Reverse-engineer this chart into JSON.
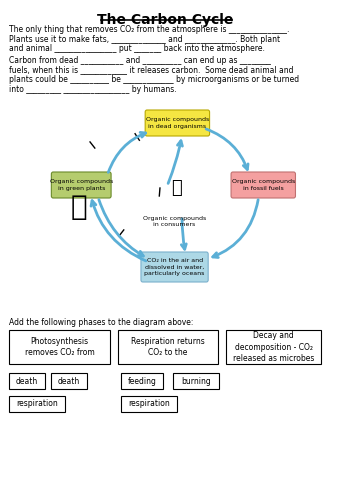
{
  "title": "The Carbon Cycle",
  "bg_color": "#ffffff",
  "para1_lines": [
    "The only thing that removes CO₂ from the atmosphere is _______________.",
    "Plants use it to make fats, ______________ and _____________. Both plant",
    "and animal ________________ put _______ back into the atmosphere."
  ],
  "para2_lines": [
    "Carbon from dead ___________ and __________ can end up as ________",
    "fuels, when this is ____________ it releases carbon.  Some dead animal and",
    "plants could be __________ be _____________ by microorganisms or be turned",
    "into _________ _________________ by humans."
  ],
  "diagram_labels": {
    "top": "Organic compounds\nin dead organisms",
    "left": "Organic compounds\nin green plants",
    "center": "Organic compounds\nin consumers",
    "right": "Organic compounds\nin fossil fuels",
    "bottom": "CO₂ in the air and\ndissolved in water,\nparticularly oceans"
  },
  "diagram_colors": {
    "top": "#f5e642",
    "top_edge": "#b8a800",
    "left": "#b5cc6e",
    "left_edge": "#6a8a2a",
    "right": "#f4a0a0",
    "right_edge": "#c07070",
    "bottom": "#add8e6",
    "bottom_edge": "#7ab0cc",
    "arrow": "#5bafd6"
  },
  "instruction": "Add the following phases to the diagram above:",
  "boxes_row1": [
    "Photosynthesis\nremoves CO₂ from",
    "Respiration returns\nCO₂ to the",
    "Decay and\ndecomposition - CO₂\nreleased as microbes"
  ],
  "boxes_row2": [
    "death",
    "death",
    "feeding",
    "burning"
  ],
  "boxes_row3": [
    "respiration",
    "respiration"
  ]
}
